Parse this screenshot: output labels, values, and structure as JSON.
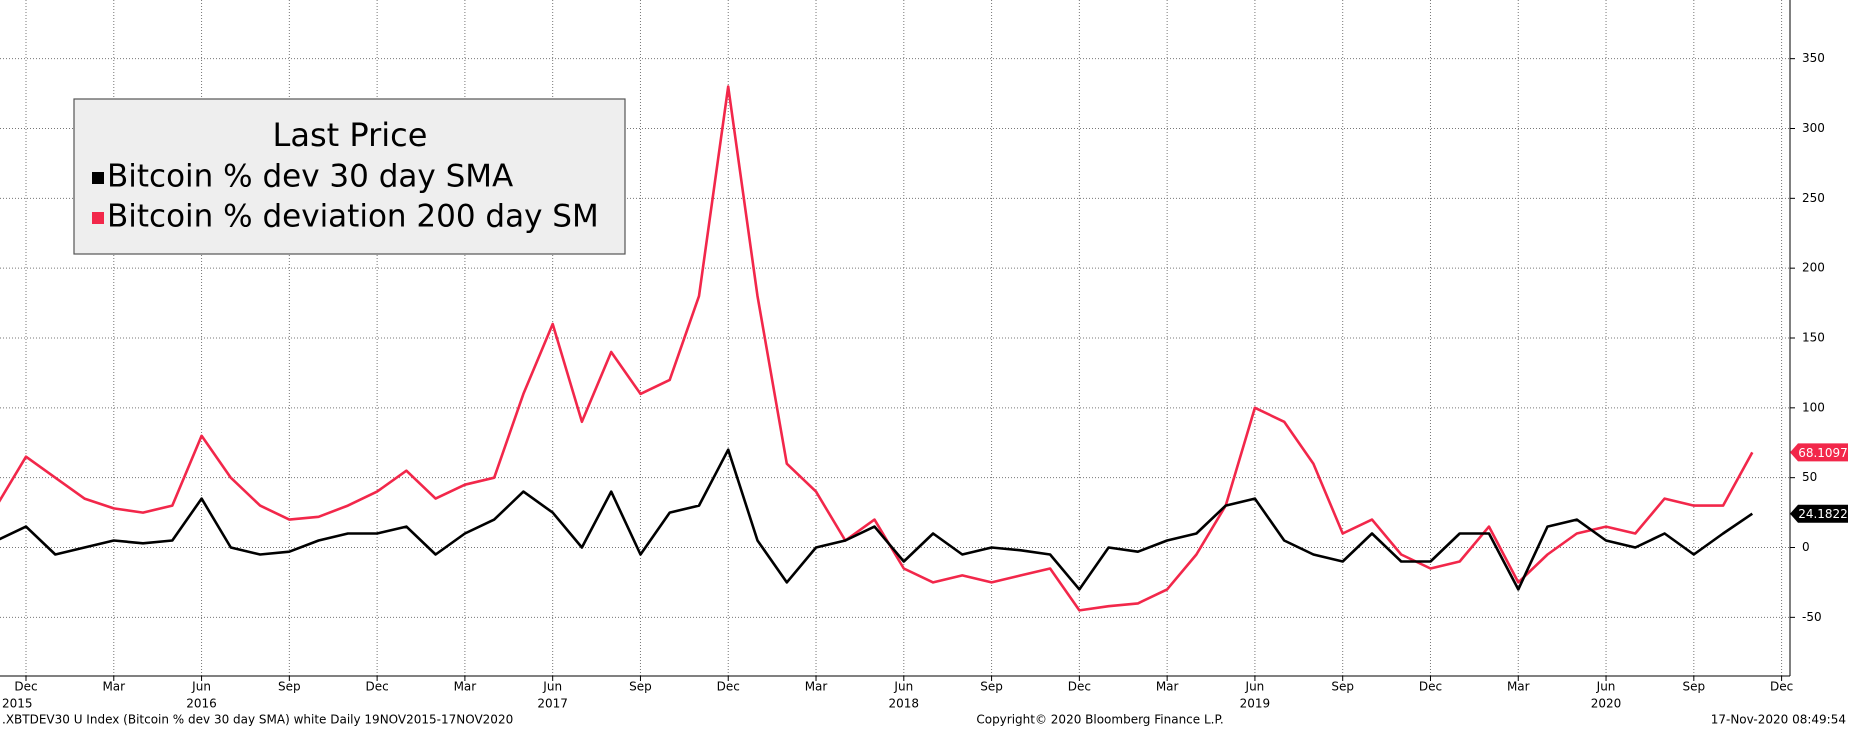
{
  "chart_data": {
    "type": "line",
    "legend_title": "Last Price",
    "x": [
      "2015-11",
      "2015-12",
      "2016-01",
      "2016-02",
      "2016-03",
      "2016-04",
      "2016-05",
      "2016-06",
      "2016-07",
      "2016-08",
      "2016-09",
      "2016-10",
      "2016-11",
      "2016-12",
      "2017-01",
      "2017-02",
      "2017-03",
      "2017-04",
      "2017-05",
      "2017-06",
      "2017-07",
      "2017-08",
      "2017-09",
      "2017-10",
      "2017-11",
      "2017-12",
      "2018-01",
      "2018-02",
      "2018-03",
      "2018-04",
      "2018-05",
      "2018-06",
      "2018-07",
      "2018-08",
      "2018-09",
      "2018-10",
      "2018-11",
      "2018-12",
      "2019-01",
      "2019-02",
      "2019-03",
      "2019-04",
      "2019-05",
      "2019-06",
      "2019-07",
      "2019-08",
      "2019-09",
      "2019-10",
      "2019-11",
      "2019-12",
      "2020-01",
      "2020-02",
      "2020-03",
      "2020-04",
      "2020-05",
      "2020-06",
      "2020-07",
      "2020-08",
      "2020-09",
      "2020-10",
      "2020-11"
    ],
    "series": [
      {
        "name": "Bitcoin % dev 30 day SMA",
        "color": "#000000",
        "values": [
          5,
          15,
          -5,
          0,
          5,
          3,
          5,
          35,
          0,
          -5,
          -3,
          5,
          10,
          10,
          15,
          -5,
          10,
          20,
          40,
          25,
          0,
          40,
          -5,
          25,
          30,
          70,
          5,
          -25,
          0,
          5,
          15,
          -10,
          10,
          -5,
          0,
          -2,
          -5,
          -30,
          0,
          -3,
          5,
          10,
          30,
          35,
          5,
          -5,
          -10,
          10,
          -10,
          -10,
          10,
          10,
          -30,
          15,
          20,
          5,
          0,
          10,
          -5,
          10,
          24.1822
        ]
      },
      {
        "name": "Bitcoin % deviation 200 day SM",
        "color": "#f2274a",
        "values": [
          30,
          65,
          50,
          35,
          28,
          25,
          30,
          80,
          50,
          30,
          20,
          22,
          30,
          40,
          55,
          35,
          45,
          50,
          110,
          160,
          90,
          140,
          110,
          120,
          180,
          330,
          180,
          60,
          40,
          5,
          20,
          -15,
          -25,
          -20,
          -25,
          -20,
          -15,
          -45,
          -42,
          -40,
          -30,
          -5,
          30,
          100,
          90,
          60,
          10,
          20,
          -5,
          -15,
          -10,
          15,
          -25,
          -5,
          10,
          15,
          10,
          35,
          30,
          30,
          68.1097
        ]
      }
    ],
    "xticks": [
      {
        "value": "2015-12",
        "label": "Dec"
      },
      {
        "value": "2016-03",
        "label": "Mar"
      },
      {
        "value": "2016-06",
        "label": "Jun"
      },
      {
        "value": "2016-09",
        "label": "Sep"
      },
      {
        "value": "2016-12",
        "label": "Dec"
      },
      {
        "value": "2017-03",
        "label": "Mar"
      },
      {
        "value": "2017-06",
        "label": "Jun"
      },
      {
        "value": "2017-09",
        "label": "Sep"
      },
      {
        "value": "2017-12",
        "label": "Dec"
      },
      {
        "value": "2018-03",
        "label": "Mar"
      },
      {
        "value": "2018-06",
        "label": "Jun"
      },
      {
        "value": "2018-09",
        "label": "Sep"
      },
      {
        "value": "2018-12",
        "label": "Dec"
      },
      {
        "value": "2019-03",
        "label": "Mar"
      },
      {
        "value": "2019-06",
        "label": "Jun"
      },
      {
        "value": "2019-09",
        "label": "Sep"
      },
      {
        "value": "2019-12",
        "label": "Dec"
      },
      {
        "value": "2020-03",
        "label": "Mar"
      },
      {
        "value": "2020-06",
        "label": "Jun"
      },
      {
        "value": "2020-09",
        "label": "Sep"
      },
      {
        "value": "2020-12",
        "label": "Dec"
      }
    ],
    "year_labels": [
      {
        "value": "2015-12",
        "label": "2015"
      },
      {
        "value": "2016-06",
        "label": "2016"
      },
      {
        "value": "2017-06",
        "label": "2017"
      },
      {
        "value": "2018-06",
        "label": "2018"
      },
      {
        "value": "2019-06",
        "label": "2019"
      },
      {
        "value": "2020-06",
        "label": "2020"
      }
    ],
    "ylim": [
      -92,
      392
    ],
    "yticks": [
      -50,
      0,
      50,
      100,
      150,
      200,
      250,
      300,
      350
    ],
    "grid": true,
    "legend": "upper left",
    "footer_left": ".XBTDEV30 U Index (Bitcoin % dev 30 day SMA) white  Daily 19NOV2015-17NOV2020",
    "footer_center": "Copyright© 2020 Bloomberg Finance L.P.",
    "footer_right": "17-Nov-2020 08:49:54"
  }
}
